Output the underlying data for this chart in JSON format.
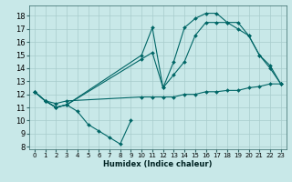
{
  "xlabel": "Humidex (Indice chaleur)",
  "background_color": "#c8e8e8",
  "grid_color": "#a8cccc",
  "line_color": "#006666",
  "xlim": [
    -0.5,
    23.5
  ],
  "ylim": [
    7.8,
    18.8
  ],
  "xtick_vals": [
    0,
    1,
    2,
    3,
    4,
    5,
    6,
    7,
    8,
    9,
    10,
    11,
    12,
    13,
    14,
    15,
    16,
    17,
    18,
    19,
    20,
    21,
    22,
    23
  ],
  "ytick_vals": [
    8,
    9,
    10,
    11,
    12,
    13,
    14,
    15,
    16,
    17,
    18
  ],
  "series": [
    {
      "x": [
        0,
        1,
        2,
        3,
        4,
        5,
        6,
        7,
        8,
        9
      ],
      "y": [
        12.2,
        11.5,
        11.0,
        11.2,
        10.7,
        9.7,
        9.2,
        8.7,
        8.2,
        10.0
      ]
    },
    {
      "x": [
        0,
        1,
        2,
        3,
        10,
        11,
        12,
        13,
        14,
        15,
        16,
        17,
        18,
        19,
        20,
        21,
        22,
        23
      ],
      "y": [
        12.2,
        11.5,
        11.0,
        11.2,
        15.0,
        17.1,
        12.5,
        14.5,
        17.1,
        17.8,
        18.2,
        18.2,
        17.5,
        17.5,
        16.5,
        15.0,
        14.0,
        12.8
      ]
    },
    {
      "x": [
        0,
        1,
        2,
        3,
        10,
        11,
        12,
        13,
        14,
        15,
        16,
        17,
        18,
        19,
        20,
        21,
        22,
        23
      ],
      "y": [
        12.2,
        11.5,
        11.0,
        11.2,
        14.7,
        15.2,
        12.5,
        13.5,
        14.5,
        16.5,
        17.5,
        17.5,
        17.5,
        17.0,
        16.5,
        15.0,
        14.2,
        12.8
      ]
    },
    {
      "x": [
        0,
        1,
        2,
        3,
        10,
        11,
        12,
        13,
        14,
        15,
        16,
        17,
        18,
        19,
        20,
        21,
        22,
        23
      ],
      "y": [
        12.2,
        11.5,
        11.3,
        11.5,
        11.8,
        11.8,
        11.8,
        11.8,
        12.0,
        12.0,
        12.2,
        12.2,
        12.3,
        12.3,
        12.5,
        12.6,
        12.8,
        12.8
      ]
    }
  ]
}
